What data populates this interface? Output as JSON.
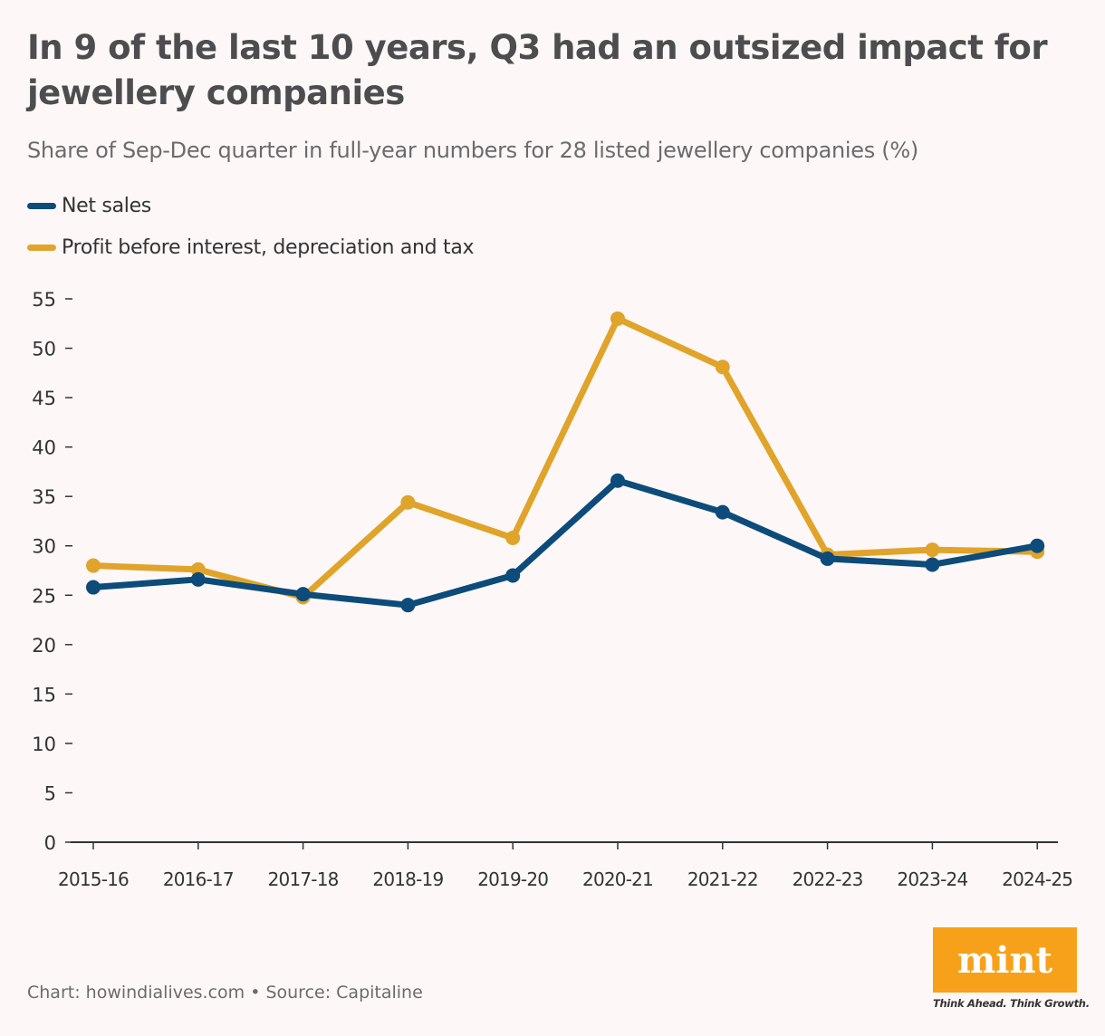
{
  "chart_data": {
    "type": "line",
    "title": "In 9 of the last 10 years, Q3 had an outsized impact for jewellery companies",
    "subtitle": "Share of Sep-Dec quarter in full-year numbers for 28 listed jewellery companies (%)",
    "categories": [
      "2015-16",
      "2016-17",
      "2017-18",
      "2018-19",
      "2019-20",
      "2020-21",
      "2021-22",
      "2022-23",
      "2023-24",
      "2024-25"
    ],
    "series": [
      {
        "name": "Net sales",
        "color": "#0d4c7a",
        "values": [
          25.8,
          26.6,
          25.1,
          24.0,
          27.0,
          36.6,
          33.4,
          28.7,
          28.1,
          30.0
        ]
      },
      {
        "name": "Profit before interest, depreciation and tax",
        "color": "#e0a42b",
        "values": [
          28.0,
          27.6,
          24.8,
          34.4,
          30.8,
          53.0,
          48.1,
          29.1,
          29.6,
          29.4
        ]
      }
    ],
    "yticks": [
      0,
      5,
      10,
      15,
      20,
      25,
      30,
      35,
      40,
      45,
      50,
      55
    ],
    "ylim": [
      0,
      55
    ],
    "grid": false,
    "legend": "top-left",
    "xlabel": "",
    "ylabel": ""
  },
  "footer": {
    "source": "Chart: howindialives.com • Source: Capitaline"
  },
  "logo": {
    "text": "mint",
    "tagline": "Think Ahead. Think Growth.",
    "color": "#f7a11a"
  }
}
